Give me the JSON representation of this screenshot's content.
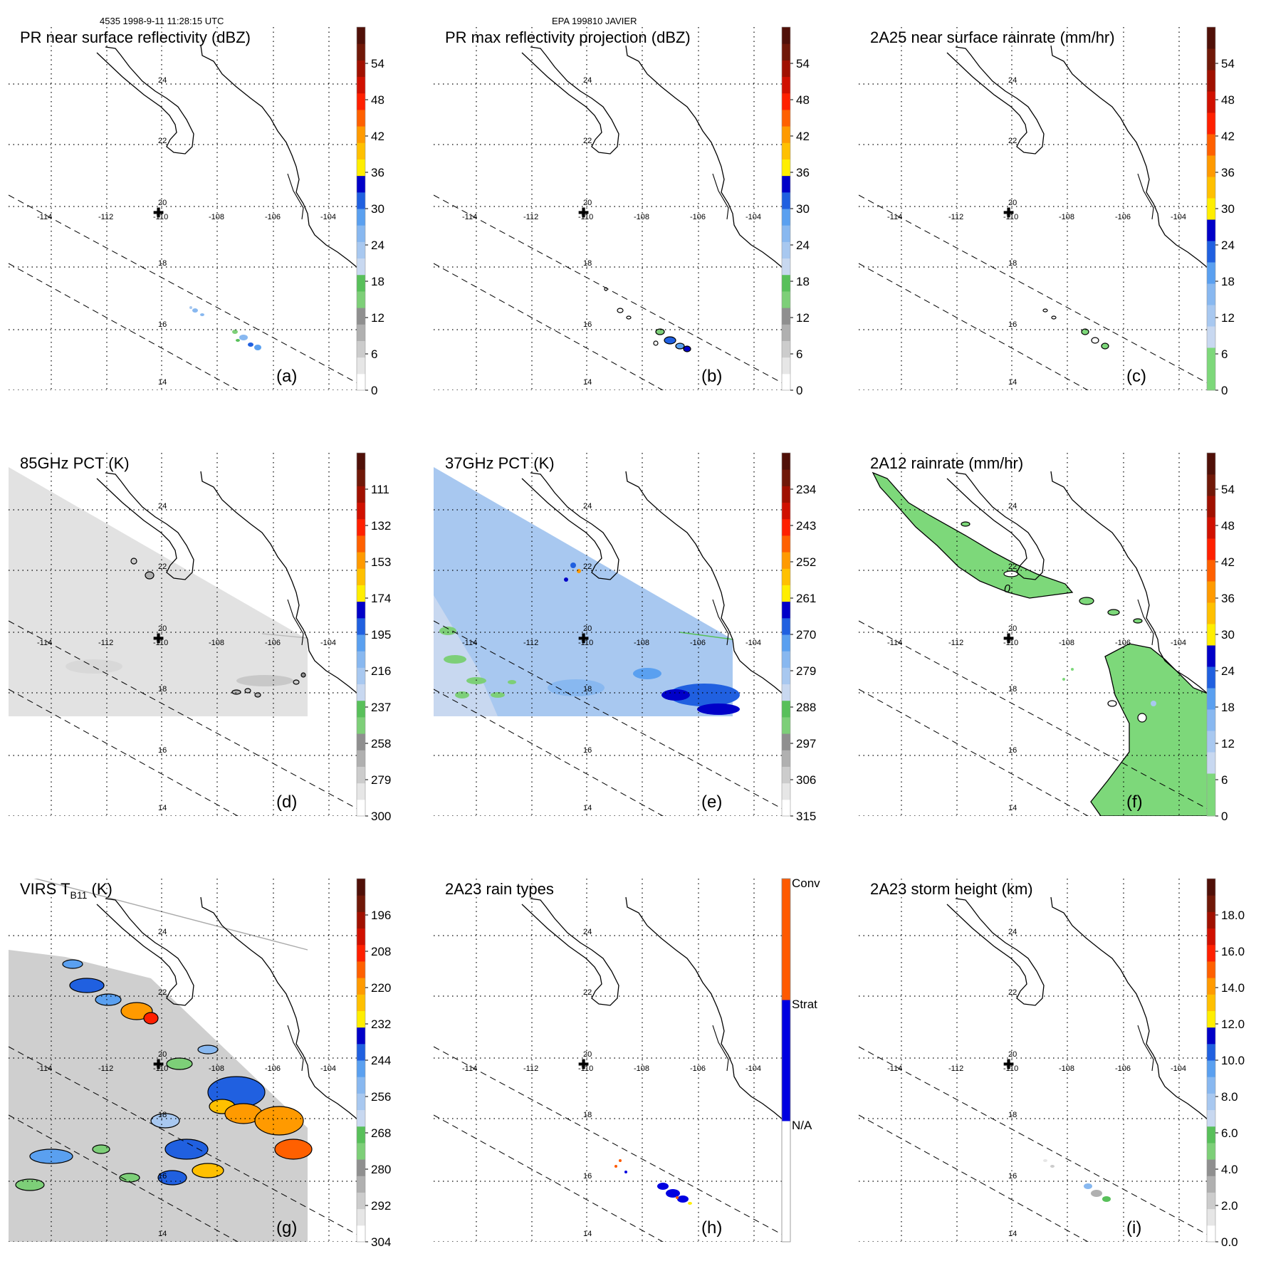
{
  "header": {
    "left": "4535 1998-9-11 11:28:15 UTC",
    "center": "EPA 199810 JAVIER"
  },
  "map": {
    "lat_labels": [
      "24",
      "22",
      "20",
      "18",
      "16",
      "14"
    ],
    "lon_labels": [
      "-114",
      "-112",
      "-110",
      "-108",
      "-106",
      "-104"
    ],
    "storm_center_symbol": "✚",
    "coastline_color": "#000000",
    "gridline_color": "#000000",
    "swath_edge_color": "#000000"
  },
  "panels": [
    {
      "id": "a",
      "title": "PR near surface reflectivity (dBZ)",
      "panel_label": "(a)",
      "colorbar": {
        "ticks": [
          "54",
          "48",
          "42",
          "36",
          "30",
          "24",
          "18",
          "12",
          "6",
          "0"
        ],
        "colors": [
          "#ffffff",
          "#e6e6e6",
          "#cccccc",
          "#b0b0b0",
          "#8f8f8f",
          "#7dcf78",
          "#58c05a",
          "#c8d8f0",
          "#a8c8f0",
          "#88b8f0",
          "#5aa0f0",
          "#2060e0",
          "#0000c8",
          "#ffee00",
          "#ffc000",
          "#ff9a00",
          "#ff6000",
          "#ff2000",
          "#d01000",
          "#a01000",
          "#701808",
          "#501008"
        ]
      },
      "overlay": "pr_near_surface"
    },
    {
      "id": "b",
      "title": "PR max reflectivity projection (dBZ)",
      "panel_label": "(b)",
      "colorbar": {
        "ticks": [
          "54",
          "48",
          "42",
          "36",
          "30",
          "24",
          "18",
          "12",
          "6",
          "0"
        ],
        "colors": [
          "#ffffff",
          "#e6e6e6",
          "#cccccc",
          "#b0b0b0",
          "#8f8f8f",
          "#7dcf78",
          "#58c05a",
          "#c8d8f0",
          "#a8c8f0",
          "#88b8f0",
          "#5aa0f0",
          "#2060e0",
          "#0000c8",
          "#ffee00",
          "#ffc000",
          "#ff9a00",
          "#ff6000",
          "#ff2000",
          "#d01000",
          "#a01000",
          "#701808",
          "#501008"
        ]
      },
      "overlay": "pr_max"
    },
    {
      "id": "c",
      "title": "2A25 near surface rainrate (mm/hr)",
      "panel_label": "(c)",
      "colorbar": {
        "ticks": [
          "54",
          "48",
          "42",
          "36",
          "30",
          "24",
          "18",
          "12",
          "6",
          "0"
        ],
        "colors": [
          "#7dd87a",
          "#7dd87a",
          "#c8d8f0",
          "#a8c8f0",
          "#88b8f0",
          "#5aa0f0",
          "#2060e0",
          "#0000c8",
          "#ffee00",
          "#ffc000",
          "#ff9a00",
          "#ff6000",
          "#ff2000",
          "#d01000",
          "#a01000",
          "#701808",
          "#501008"
        ]
      },
      "overlay": "rain_2a25"
    },
    {
      "id": "d",
      "title": "85GHz PCT (K)",
      "panel_label": "(d)",
      "colorbar": {
        "ticks": [
          "111",
          "132",
          "153",
          "174",
          "195",
          "216",
          "237",
          "258",
          "279",
          "300"
        ],
        "colors": [
          "#ffffff",
          "#e6e6e6",
          "#cccccc",
          "#b0b0b0",
          "#8f8f8f",
          "#7dcf78",
          "#58c05a",
          "#c8d8f0",
          "#a8c8f0",
          "#88b8f0",
          "#5aa0f0",
          "#2060e0",
          "#0000c8",
          "#ffee00",
          "#ffc000",
          "#ff9a00",
          "#ff6000",
          "#ff2000",
          "#d01000",
          "#a01000",
          "#701808",
          "#501008"
        ]
      },
      "overlay": "pct85"
    },
    {
      "id": "e",
      "title": "37GHz PCT (K)",
      "panel_label": "(e)",
      "colorbar": {
        "ticks": [
          "234",
          "243",
          "252",
          "261",
          "270",
          "279",
          "288",
          "297",
          "306",
          "315"
        ],
        "colors": [
          "#ffffff",
          "#e6e6e6",
          "#cccccc",
          "#b0b0b0",
          "#8f8f8f",
          "#7dcf78",
          "#58c05a",
          "#c8d8f0",
          "#a8c8f0",
          "#88b8f0",
          "#5aa0f0",
          "#2060e0",
          "#0000c8",
          "#ffee00",
          "#ffc000",
          "#ff9a00",
          "#ff6000",
          "#ff2000",
          "#d01000",
          "#a01000",
          "#701808",
          "#501008"
        ]
      },
      "overlay": "pct37"
    },
    {
      "id": "f",
      "title": "2A12 rainrate (mm/hr)",
      "panel_label": "(f)",
      "colorbar": {
        "ticks": [
          "54",
          "48",
          "42",
          "36",
          "30",
          "24",
          "18",
          "12",
          "6",
          "0"
        ],
        "colors": [
          "#7dd87a",
          "#7dd87a",
          "#c8d8f0",
          "#a8c8f0",
          "#88b8f0",
          "#5aa0f0",
          "#2060e0",
          "#0000c8",
          "#ffee00",
          "#ffc000",
          "#ff9a00",
          "#ff6000",
          "#ff2000",
          "#d01000",
          "#a01000",
          "#701808",
          "#501008"
        ]
      },
      "overlay": "rain_2a12",
      "contour_label": "0"
    },
    {
      "id": "g",
      "title_main": "VIRS T",
      "title_sub": "B11",
      "title_tail": " (K)",
      "panel_label": "(g)",
      "colorbar": {
        "ticks": [
          "196",
          "208",
          "220",
          "232",
          "244",
          "256",
          "268",
          "280",
          "292",
          "304"
        ],
        "colors": [
          "#ffffff",
          "#e6e6e6",
          "#cccccc",
          "#b0b0b0",
          "#8f8f8f",
          "#7dcf78",
          "#58c05a",
          "#c8d8f0",
          "#a8c8f0",
          "#88b8f0",
          "#5aa0f0",
          "#2060e0",
          "#0000c8",
          "#ffee00",
          "#ffc000",
          "#ff9a00",
          "#ff6000",
          "#ff2000",
          "#d01000",
          "#a01000",
          "#701808",
          "#501008"
        ]
      },
      "overlay": "virs"
    },
    {
      "id": "h",
      "title": "2A23 rain types",
      "panel_label": "(h)",
      "colorbar": {
        "category_ticks": [
          "Conv",
          "Strat",
          "N/A"
        ],
        "colors": [
          "#ffffff",
          "#0000e0",
          "#ff5a00"
        ]
      },
      "overlay": "raintype"
    },
    {
      "id": "i",
      "title": "2A23 storm height (km)",
      "panel_label": "(i)",
      "colorbar": {
        "ticks": [
          "18.0",
          "16.0",
          "14.0",
          "12.0",
          "10.0",
          "8.0",
          "6.0",
          "4.0",
          "2.0",
          "0.0"
        ],
        "colors": [
          "#ffffff",
          "#e6e6e6",
          "#cccccc",
          "#b0b0b0",
          "#8f8f8f",
          "#7dcf78",
          "#58c05a",
          "#c8d8f0",
          "#a8c8f0",
          "#88b8f0",
          "#5aa0f0",
          "#2060e0",
          "#0000c8",
          "#ffee00",
          "#ffc000",
          "#ff9a00",
          "#ff6000",
          "#ff2000",
          "#d01000",
          "#a01000",
          "#701808",
          "#501008"
        ]
      },
      "overlay": "storm_height"
    }
  ]
}
